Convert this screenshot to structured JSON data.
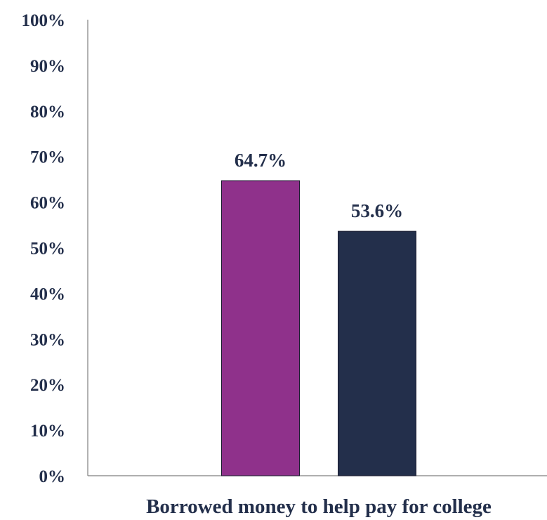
{
  "chart_data": {
    "type": "bar",
    "categories": [
      "Borrowed money to help pay for college"
    ],
    "series": [
      {
        "values": [
          64.7
        ],
        "color": "#8f318b",
        "label": "64.7%"
      },
      {
        "values": [
          53.6
        ],
        "color": "#232f4b",
        "label": "53.6%"
      }
    ],
    "ylim": [
      0,
      100
    ],
    "yticks": [
      "0%",
      "10%",
      "20%",
      "30%",
      "40%",
      "50%",
      "60%",
      "70%",
      "80%",
      "90%",
      "100%"
    ],
    "xlabel": "",
    "ylabel": "",
    "grid": false,
    "axis_color": "#7f7f7f",
    "text_color": "#232f4b"
  }
}
